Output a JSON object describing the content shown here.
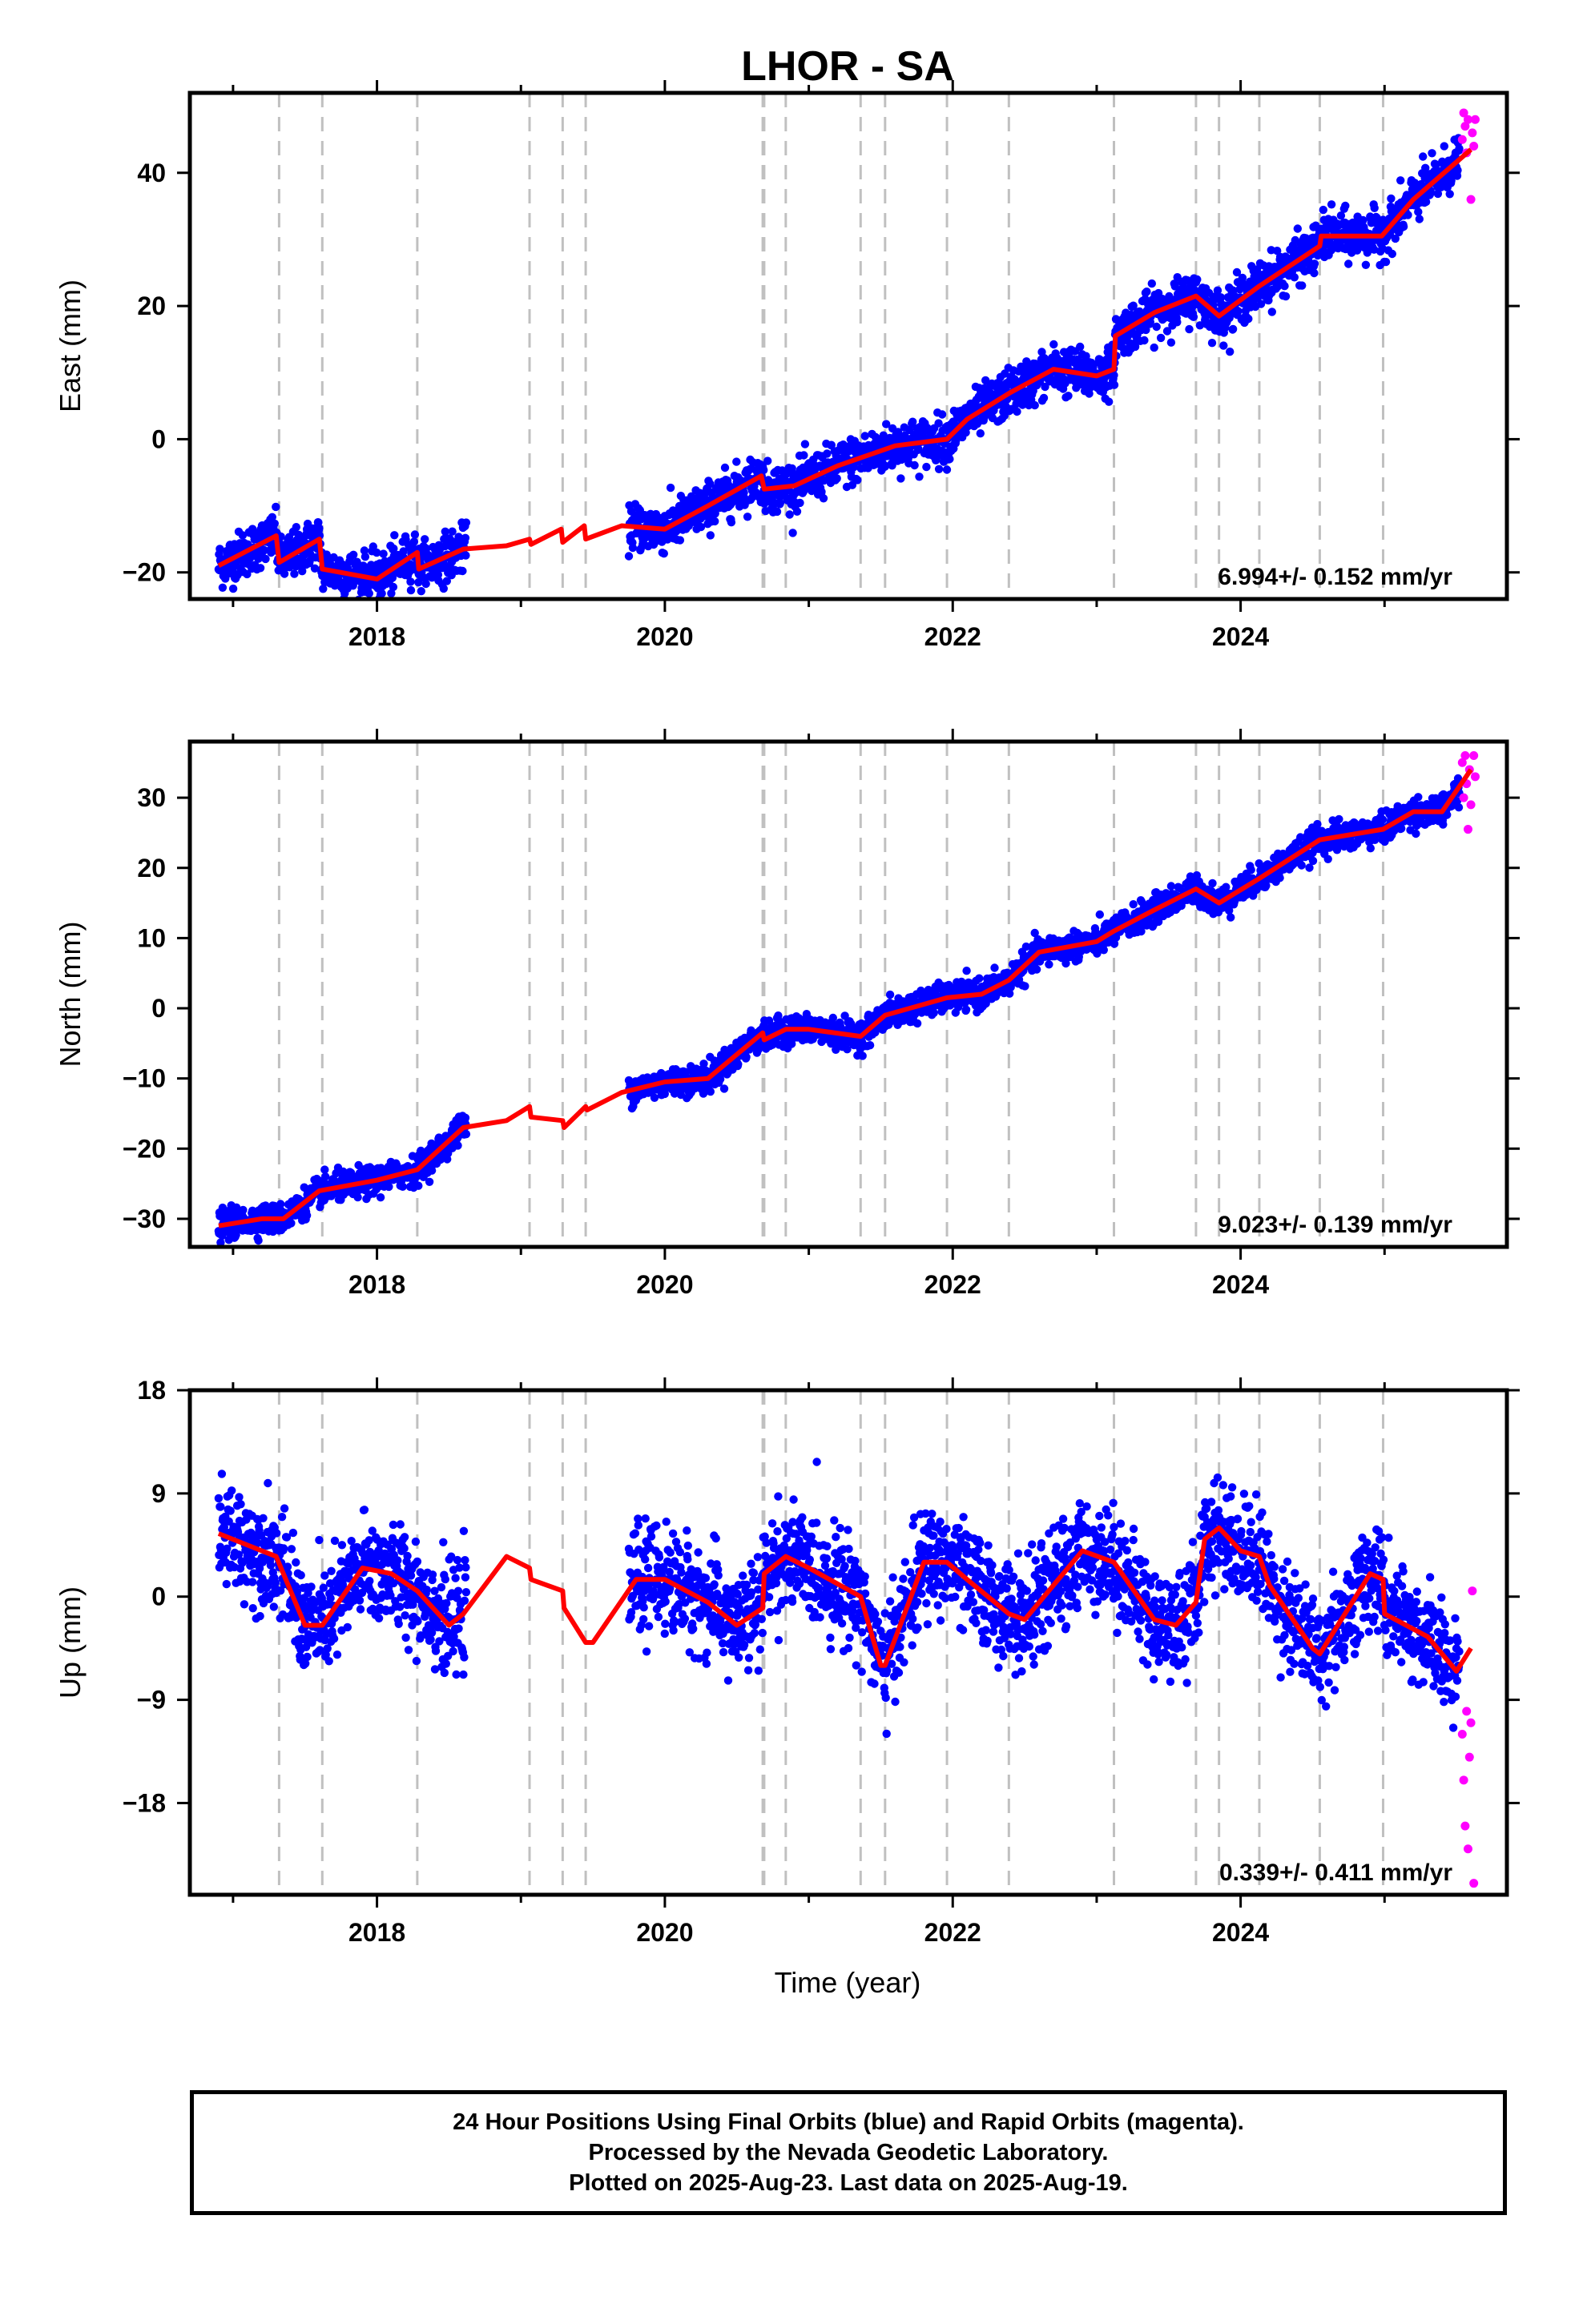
{
  "chart_data": {
    "title": "LHOR - SA",
    "type": "scatter",
    "xlabel": "Time (year)",
    "xlim": [
      2016.7,
      2025.85
    ],
    "xticks": [
      2018,
      2020,
      2022,
      2024
    ],
    "xtick_labels": [
      "2018",
      "2020",
      "2022",
      "2024"
    ],
    "grid": false,
    "series_colors": {
      "final": "#0000ff",
      "rapid": "#ff00ff",
      "model": "#ff0000",
      "steps": "#c0c0c0"
    },
    "step_epochs": [
      2017.32,
      2017.62,
      2018.28,
      2019.06,
      2019.29,
      2019.45,
      2020.68,
      2020.69,
      2020.84,
      2021.36,
      2021.53,
      2021.96,
      2022.39,
      2023.12,
      2023.69,
      2023.85,
      2024.13,
      2024.55,
      2024.99
    ],
    "panels": [
      {
        "name": "east",
        "ylabel": "East (mm)",
        "ylim": [
          -24,
          52
        ],
        "yticks": [
          -20,
          0,
          20,
          40
        ],
        "ytick_labels": [
          "−20",
          "0",
          "20",
          "40"
        ],
        "rate_label": "6.994+/- 0.152 mm/yr",
        "model": [
          [
            2016.9,
            -19
          ],
          [
            2017.3,
            -14.5
          ],
          [
            2017.32,
            -18.5
          ],
          [
            2017.6,
            -15
          ],
          [
            2017.62,
            -19.5
          ],
          [
            2018.0,
            -21
          ],
          [
            2018.28,
            -17
          ],
          [
            2018.29,
            -19.5
          ],
          [
            2018.6,
            -16.5
          ],
          [
            2018.9,
            -16
          ],
          [
            2019.06,
            -15
          ],
          [
            2019.07,
            -15.8
          ],
          [
            2019.28,
            -13.5
          ],
          [
            2019.29,
            -15.5
          ],
          [
            2019.44,
            -13
          ],
          [
            2019.45,
            -15
          ],
          [
            2019.7,
            -13
          ],
          [
            2020.0,
            -13.5
          ],
          [
            2020.3,
            -10
          ],
          [
            2020.67,
            -5.5
          ],
          [
            2020.69,
            -7.5
          ],
          [
            2020.9,
            -7
          ],
          [
            2021.2,
            -4
          ],
          [
            2021.6,
            -1
          ],
          [
            2021.96,
            0
          ],
          [
            2022.1,
            3
          ],
          [
            2022.4,
            7
          ],
          [
            2022.7,
            10.5
          ],
          [
            2023.0,
            9.5
          ],
          [
            2023.12,
            10.5
          ],
          [
            2023.13,
            15.5
          ],
          [
            2023.4,
            19
          ],
          [
            2023.69,
            21.5
          ],
          [
            2023.85,
            18.5
          ],
          [
            2024.13,
            23
          ],
          [
            2024.55,
            29
          ],
          [
            2024.56,
            30.5
          ],
          [
            2024.98,
            30.5
          ],
          [
            2025.2,
            36
          ],
          [
            2025.6,
            43.5
          ]
        ],
        "final_bands": [
          [
            2016.9,
            2018.62,
            -18,
            3.5
          ],
          [
            2019.75,
            2025.52,
            null,
            3.5
          ]
        ],
        "rapid_points": [
          [
            2025.54,
            45
          ],
          [
            2025.55,
            49
          ],
          [
            2025.56,
            47
          ],
          [
            2025.57,
            43
          ],
          [
            2025.58,
            48
          ],
          [
            2025.6,
            36
          ],
          [
            2025.61,
            46
          ],
          [
            2025.62,
            44
          ],
          [
            2025.63,
            48
          ]
        ]
      },
      {
        "name": "north",
        "ylabel": "North (mm)",
        "ylim": [
          -34,
          38
        ],
        "yticks": [
          -30,
          -20,
          -10,
          0,
          10,
          20,
          30
        ],
        "ytick_labels": [
          "−30",
          "−20",
          "−10",
          "0",
          "10",
          "20",
          "30"
        ],
        "rate_label": "9.023+/- 0.139 mm/yr",
        "model": [
          [
            2016.9,
            -31
          ],
          [
            2017.2,
            -30
          ],
          [
            2017.35,
            -30
          ],
          [
            2017.6,
            -26
          ],
          [
            2018.0,
            -24.5
          ],
          [
            2018.28,
            -23
          ],
          [
            2018.6,
            -17
          ],
          [
            2018.9,
            -16
          ],
          [
            2019.06,
            -14
          ],
          [
            2019.07,
            -15.5
          ],
          [
            2019.29,
            -16
          ],
          [
            2019.3,
            -17
          ],
          [
            2019.45,
            -14
          ],
          [
            2019.46,
            -14.5
          ],
          [
            2019.7,
            -12
          ],
          [
            2020.0,
            -10.5
          ],
          [
            2020.3,
            -10
          ],
          [
            2020.68,
            -3.5
          ],
          [
            2020.69,
            -4.5
          ],
          [
            2020.84,
            -3
          ],
          [
            2021.0,
            -3
          ],
          [
            2021.36,
            -4
          ],
          [
            2021.53,
            -1
          ],
          [
            2021.96,
            1.5
          ],
          [
            2022.2,
            2
          ],
          [
            2022.39,
            4
          ],
          [
            2022.6,
            8
          ],
          [
            2023.0,
            9.5
          ],
          [
            2023.12,
            11
          ],
          [
            2023.4,
            14
          ],
          [
            2023.69,
            17
          ],
          [
            2023.85,
            15
          ],
          [
            2024.13,
            18.5
          ],
          [
            2024.55,
            24
          ],
          [
            2024.99,
            25.5
          ],
          [
            2025.2,
            28
          ],
          [
            2025.4,
            28
          ],
          [
            2025.6,
            34
          ]
        ],
        "final_bands": [
          [
            2016.9,
            2018.62,
            null,
            2.0
          ],
          [
            2019.75,
            2025.52,
            null,
            2.0
          ]
        ],
        "rapid_points": [
          [
            2025.54,
            35
          ],
          [
            2025.55,
            30
          ],
          [
            2025.56,
            36
          ],
          [
            2025.57,
            32
          ],
          [
            2025.58,
            25.5
          ],
          [
            2025.59,
            34
          ],
          [
            2025.6,
            29
          ],
          [
            2025.62,
            36
          ],
          [
            2025.63,
            33
          ]
        ]
      },
      {
        "name": "up",
        "ylabel": "Up (mm)",
        "ylim": [
          -26,
          18
        ],
        "yticks": [
          -18,
          -9,
          0,
          9,
          18
        ],
        "ytick_labels": [
          "−18",
          "−9",
          "0",
          "9",
          "18"
        ],
        "rate_label": "0.339+/- 0.411 mm/yr",
        "model": [
          [
            2016.9,
            5.5
          ],
          [
            2017.2,
            4
          ],
          [
            2017.3,
            3.5
          ],
          [
            2017.5,
            -2.5
          ],
          [
            2017.62,
            -2.5
          ],
          [
            2017.9,
            2.5
          ],
          [
            2018.1,
            2
          ],
          [
            2018.28,
            0.5
          ],
          [
            2018.5,
            -2.5
          ],
          [
            2018.6,
            -1.5
          ],
          [
            2018.9,
            3.5
          ],
          [
            2019.06,
            2.5
          ],
          [
            2019.07,
            1.5
          ],
          [
            2019.29,
            0.5
          ],
          [
            2019.3,
            -1
          ],
          [
            2019.45,
            -4
          ],
          [
            2019.5,
            -4
          ],
          [
            2019.8,
            1.5
          ],
          [
            2020.0,
            1.5
          ],
          [
            2020.3,
            -0.5
          ],
          [
            2020.5,
            -2.5
          ],
          [
            2020.68,
            -1
          ],
          [
            2020.69,
            2
          ],
          [
            2020.84,
            3.5
          ],
          [
            2021.0,
            2.5
          ],
          [
            2021.36,
            0
          ],
          [
            2021.5,
            -6
          ],
          [
            2021.53,
            -6
          ],
          [
            2021.8,
            3
          ],
          [
            2021.96,
            3
          ],
          [
            2022.1,
            1.5
          ],
          [
            2022.39,
            -1.5
          ],
          [
            2022.5,
            -2
          ],
          [
            2022.9,
            4
          ],
          [
            2023.12,
            3
          ],
          [
            2023.4,
            -2
          ],
          [
            2023.55,
            -2.5
          ],
          [
            2023.69,
            -0.5
          ],
          [
            2023.75,
            5
          ],
          [
            2023.85,
            6
          ],
          [
            2024.0,
            4
          ],
          [
            2024.13,
            3.5
          ],
          [
            2024.2,
            1
          ],
          [
            2024.5,
            -4.5
          ],
          [
            2024.55,
            -5
          ],
          [
            2024.9,
            2
          ],
          [
            2024.99,
            1.5
          ],
          [
            2025.0,
            -1.5
          ],
          [
            2025.3,
            -3.5
          ],
          [
            2025.5,
            -6.5
          ],
          [
            2025.6,
            -4.5
          ]
        ],
        "final_bands": [
          [
            2016.9,
            2018.62,
            null,
            4.5
          ],
          [
            2019.75,
            2025.52,
            null,
            4.5
          ]
        ],
        "rapid_points": [
          [
            2025.54,
            -12
          ],
          [
            2025.55,
            -16
          ],
          [
            2025.56,
            -20
          ],
          [
            2025.57,
            -10
          ],
          [
            2025.58,
            -22
          ],
          [
            2025.59,
            -14
          ],
          [
            2025.6,
            -11
          ],
          [
            2025.61,
            0.5
          ],
          [
            2025.62,
            -25
          ]
        ]
      }
    ]
  },
  "footer": {
    "line1": "24 Hour Positions Using Final Orbits (blue) and Rapid Orbits (magenta).",
    "line2": "Processed by the Nevada Geodetic Laboratory.",
    "line3": "Plotted on 2025-Aug-23. Last data on 2025-Aug-19."
  }
}
